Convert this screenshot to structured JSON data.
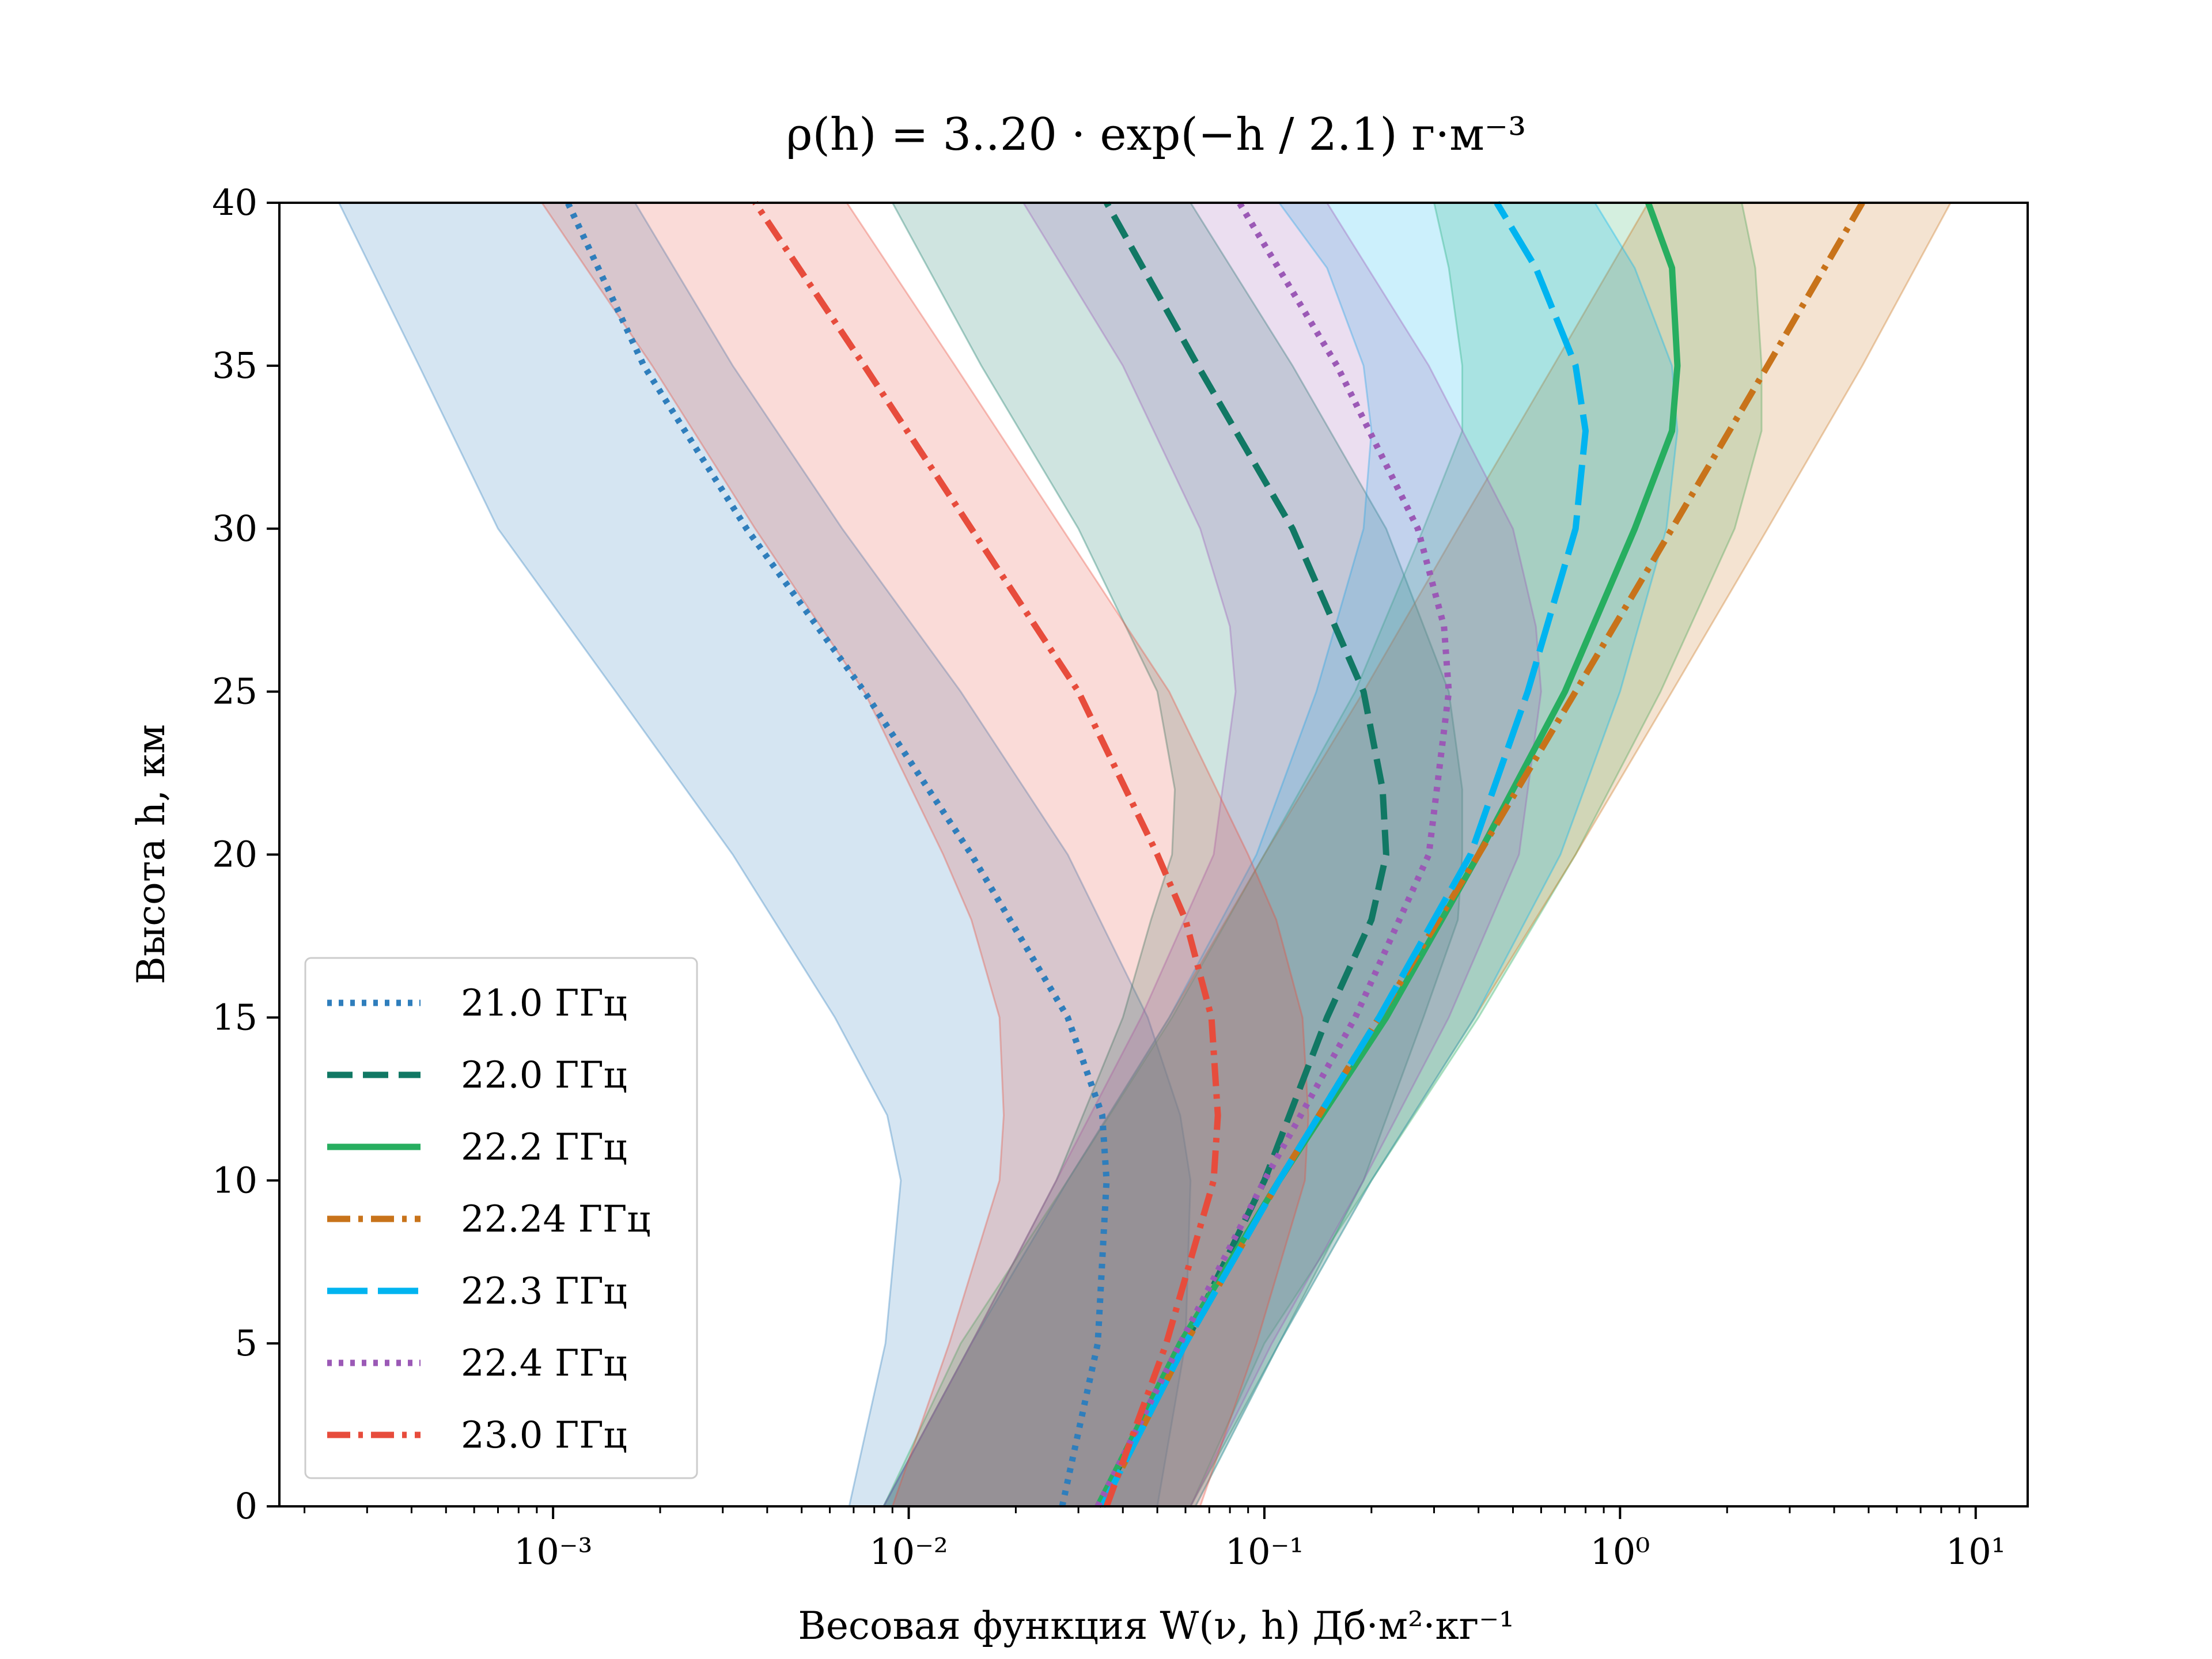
{
  "chart_data": {
    "type": "line",
    "title": "ρ(h) = 3..20 · exp(−h / 2.1) г·м⁻³",
    "xlabel": "Весовая функция W(ν, h) Дб·м²·кг⁻¹",
    "ylabel": "Высота h, км",
    "xscale": "log",
    "xlim": [
      0.00017,
      14
    ],
    "ylim": [
      0,
      40
    ],
    "xticks": [
      {
        "value": 0.001,
        "label": "10⁻³"
      },
      {
        "value": 0.01,
        "label": "10⁻²"
      },
      {
        "value": 0.1,
        "label": "10⁻¹"
      },
      {
        "value": 1,
        "label": "10⁰"
      },
      {
        "value": 10,
        "label": "10¹"
      }
    ],
    "yticks": [
      0,
      5,
      10,
      15,
      20,
      25,
      30,
      35,
      40
    ],
    "grid": false,
    "legend_position": "lower-left",
    "series": [
      {
        "name": "21.0 ГГц",
        "color": "#2f7ebc",
        "dash": "dotted",
        "h": [
          0,
          5,
          10,
          12,
          15,
          20,
          25,
          30,
          35,
          40
        ],
        "w": [
          0.027,
          0.034,
          0.036,
          0.035,
          0.028,
          0.015,
          0.0075,
          0.0035,
          0.0018,
          0.0011
        ],
        "band_low": [
          0.0068,
          0.0086,
          0.0095,
          0.0087,
          0.0062,
          0.0032,
          0.0015,
          0.0007,
          0.00042,
          0.00025
        ],
        "band_high": [
          0.05,
          0.06,
          0.062,
          0.058,
          0.047,
          0.028,
          0.014,
          0.0065,
          0.0032,
          0.0017
        ]
      },
      {
        "name": "22.0 ГГц",
        "color": "#117864",
        "dash": "dashed",
        "h": [
          0,
          5,
          10,
          15,
          18,
          20,
          22,
          25,
          30,
          35,
          40
        ],
        "w": [
          0.034,
          0.06,
          0.1,
          0.15,
          0.2,
          0.22,
          0.215,
          0.19,
          0.12,
          0.065,
          0.036
        ],
        "band_low": [
          0.0085,
          0.015,
          0.026,
          0.04,
          0.048,
          0.055,
          0.056,
          0.05,
          0.03,
          0.016,
          0.009
        ],
        "band_high": [
          0.062,
          0.11,
          0.19,
          0.28,
          0.35,
          0.36,
          0.36,
          0.33,
          0.22,
          0.12,
          0.062
        ]
      },
      {
        "name": "22.2 ГГц",
        "color": "#27ae60",
        "dash": "solid",
        "h": [
          0,
          5,
          10,
          15,
          20,
          25,
          30,
          33,
          35,
          38,
          40
        ],
        "w": [
          0.034,
          0.058,
          0.11,
          0.22,
          0.4,
          0.7,
          1.1,
          1.4,
          1.45,
          1.4,
          1.2
        ],
        "band_low": [
          0.0085,
          0.014,
          0.028,
          0.055,
          0.1,
          0.18,
          0.28,
          0.36,
          0.36,
          0.33,
          0.3
        ],
        "band_high": [
          0.062,
          0.1,
          0.2,
          0.4,
          0.75,
          1.3,
          2.1,
          2.5,
          2.5,
          2.4,
          2.2
        ]
      },
      {
        "name": "22.24 ГГц",
        "color": "#c8731a",
        "dash": "dashdot",
        "h": [
          0,
          5,
          10,
          15,
          20,
          25,
          30,
          35,
          40
        ],
        "w": [
          0.035,
          0.06,
          0.11,
          0.21,
          0.4,
          0.75,
          1.4,
          2.6,
          4.8
        ],
        "band_low": [
          0.0085,
          0.015,
          0.028,
          0.054,
          0.1,
          0.19,
          0.35,
          0.65,
          1.2
        ],
        "band_high": [
          0.064,
          0.11,
          0.2,
          0.39,
          0.75,
          1.4,
          2.6,
          4.8,
          8.5
        ]
      },
      {
        "name": "22.3 ГГц",
        "color": "#00b4f0",
        "dash": "longdash",
        "h": [
          0,
          5,
          10,
          15,
          20,
          25,
          30,
          33,
          35,
          38,
          40
        ],
        "w": [
          0.035,
          0.06,
          0.11,
          0.21,
          0.38,
          0.55,
          0.75,
          0.8,
          0.75,
          0.58,
          0.45
        ],
        "band_low": [
          0.0085,
          0.015,
          0.028,
          0.054,
          0.095,
          0.14,
          0.19,
          0.2,
          0.19,
          0.15,
          0.11
        ],
        "band_high": [
          0.064,
          0.11,
          0.2,
          0.39,
          0.68,
          1.0,
          1.35,
          1.45,
          1.4,
          1.1,
          0.85
        ]
      },
      {
        "name": "22.4 ГГц",
        "color": "#9b59b6",
        "dash": "dotted",
        "h": [
          0,
          5,
          10,
          15,
          20,
          25,
          27,
          30,
          35,
          40
        ],
        "w": [
          0.034,
          0.058,
          0.1,
          0.18,
          0.29,
          0.33,
          0.32,
          0.27,
          0.16,
          0.085
        ],
        "band_low": [
          0.0085,
          0.015,
          0.026,
          0.045,
          0.072,
          0.083,
          0.08,
          0.066,
          0.04,
          0.021
        ],
        "band_high": [
          0.062,
          0.105,
          0.19,
          0.33,
          0.52,
          0.6,
          0.58,
          0.5,
          0.29,
          0.15
        ]
      },
      {
        "name": "23.0 ГГц",
        "color": "#e74c3c",
        "dash": "dashdot",
        "h": [
          0,
          5,
          10,
          12,
          15,
          18,
          20,
          25,
          30,
          35,
          40
        ],
        "w": [
          0.036,
          0.053,
          0.072,
          0.074,
          0.071,
          0.06,
          0.05,
          0.03,
          0.015,
          0.0075,
          0.0037
        ],
        "band_low": [
          0.009,
          0.013,
          0.018,
          0.0185,
          0.018,
          0.015,
          0.0125,
          0.0075,
          0.0037,
          0.0019,
          0.00093
        ],
        "band_high": [
          0.066,
          0.095,
          0.13,
          0.133,
          0.128,
          0.108,
          0.09,
          0.054,
          0.027,
          0.0135,
          0.0067
        ]
      }
    ]
  }
}
